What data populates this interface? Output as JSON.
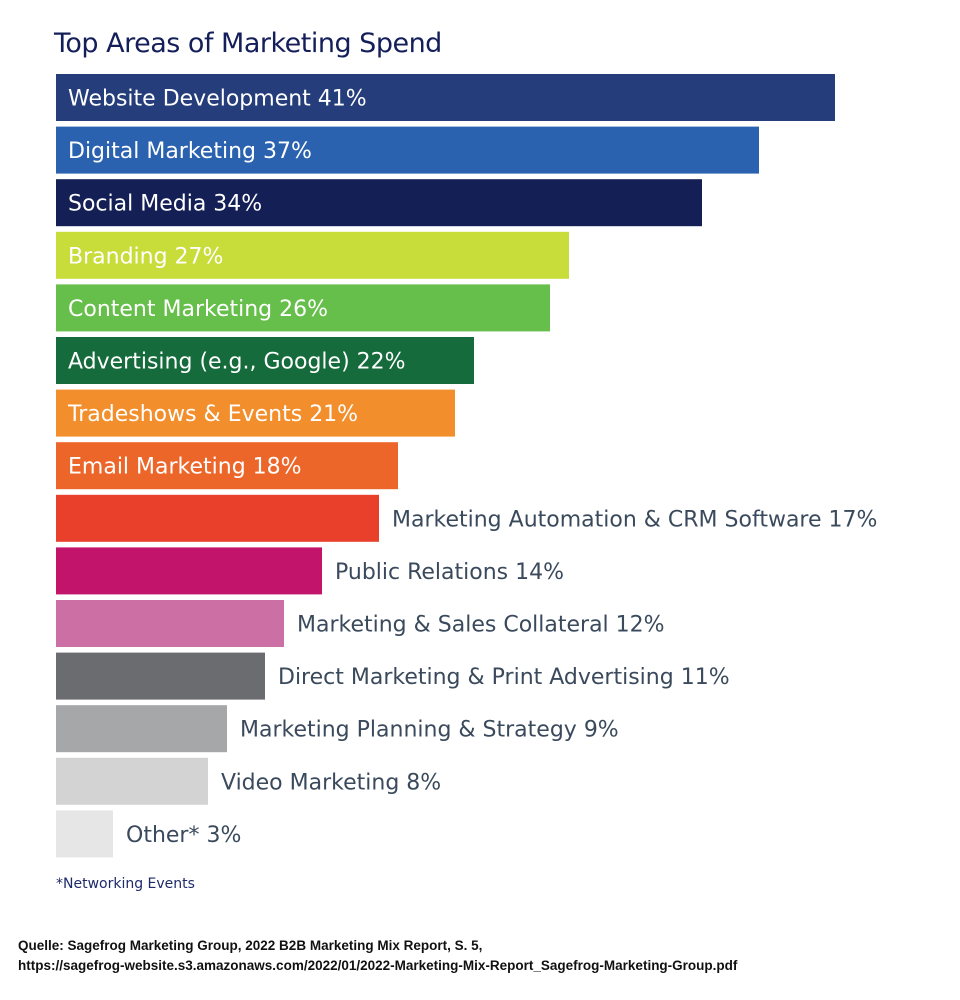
{
  "chart_data": {
    "type": "bar",
    "orientation": "horizontal",
    "title": "Top Areas of Marketing Spend",
    "unit": "%",
    "categories": [
      "Website Development",
      "Digital Marketing",
      "Social Media",
      "Branding",
      "Content Marketing",
      "Advertising (e.g., Google)",
      "Tradeshows & Events",
      "Email Marketing",
      "Marketing Automation & CRM Software",
      "Public Relations",
      "Marketing & Sales Collateral",
      "Direct Marketing & Print Advertising",
      "Marketing Planning & Strategy",
      "Video Marketing",
      "Other*"
    ],
    "values": [
      41,
      37,
      34,
      27,
      26,
      22,
      21,
      18,
      17,
      14,
      12,
      11,
      9,
      8,
      3
    ],
    "colors": [
      "#253d7a",
      "#2a62b0",
      "#131f55",
      "#c8dc3a",
      "#66bf4a",
      "#156b3b",
      "#f28e2b",
      "#ec6529",
      "#e8402b",
      "#c3146b",
      "#cc6fa5",
      "#6b6c70",
      "#a6a7a9",
      "#d3d3d4",
      "#e6e6e7"
    ],
    "label_colors": {
      "inside": "#ffffff",
      "outside": "#3a4a5c"
    },
    "grid": false,
    "legend": "none"
  },
  "footnote": "*Networking Events",
  "source_line1": "Quelle: Sagefrog Marketing Group, 2022 B2B Marketing Mix Report, S. 5,",
  "source_line2": "https://sagefrog-website.s3.amazonaws.com/2022/01/2022-Marketing-Mix-Report_Sagefrog-Marketing-Group.pdf"
}
